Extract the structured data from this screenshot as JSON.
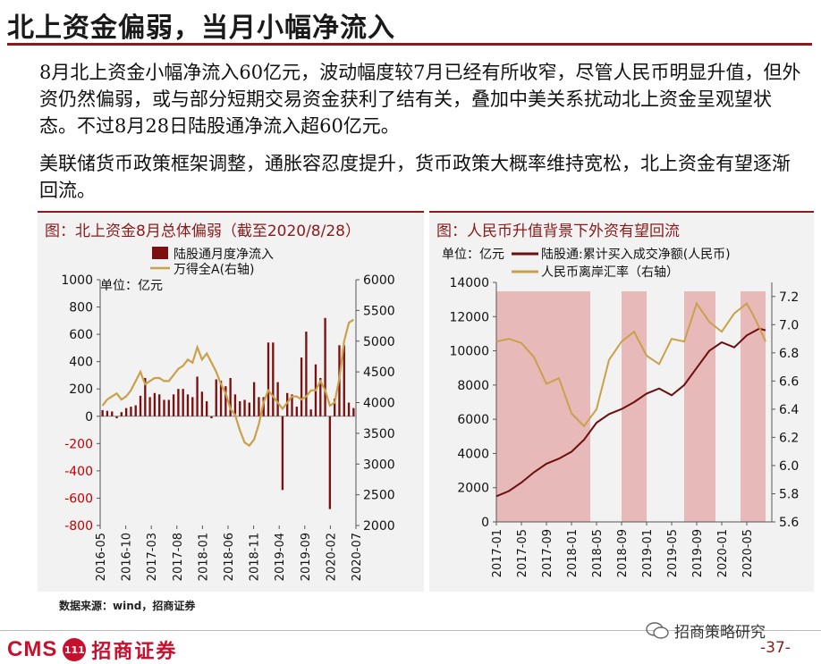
{
  "header": {
    "title": "北上资金偏弱，当月小幅净流入"
  },
  "body": {
    "para1": "8月北上资金小幅净流入60亿元，波动幅度较7月已经有所收窄，尽管人民币明显升值，但外资仍然偏弱，或与部分短期交易资金获利了结有关，叠加中美关系扰动北上资金呈观望状态。不过8月28日陆股通净流入超60亿元。",
    "para2": "美联储货币政策框架调整，通胀容忍度提升，货币政策大概率维持宽松，北上资金有望逐渐回流。"
  },
  "left_panel": {
    "title": "图：北上资金8月总体偏弱（截至2020/8/28）"
  },
  "right_panel": {
    "title": "图：人民币升值背景下外资有望回流"
  },
  "footer": {
    "source": "数据来源：wind，招商证券",
    "logo_en": "CMS",
    "logo_badge": "111",
    "logo_cn": "招商证券",
    "wechat": "招商策略研究",
    "page": "-37-"
  },
  "chart_data": [
    {
      "type": "bar",
      "unit_label": "单位：亿元",
      "x_tick_labels": [
        "2016-05",
        "2016-10",
        "2017-03",
        "2017-08",
        "2018-01",
        "2018-06",
        "2018-11",
        "2019-04",
        "2019-09",
        "2020-02",
        "2020-07"
      ],
      "ylim": [
        -800,
        1000
      ],
      "y2lim": [
        2000,
        6000
      ],
      "y_ticks": [
        -800,
        -600,
        -400,
        -200,
        0,
        200,
        400,
        600,
        800,
        1000
      ],
      "y2_ticks": [
        2000,
        2500,
        3000,
        3500,
        4000,
        4500,
        5000,
        5500,
        6000
      ],
      "series": [
        {
          "name": "陆股通月度净流入",
          "axis": "left",
          "color": "#7a1010",
          "values": [
            45,
            40,
            35,
            -15,
            30,
            60,
            70,
            80,
            150,
            280,
            140,
            170,
            160,
            120,
            120,
            160,
            200,
            200,
            160,
            140,
            290,
            180,
            110,
            -15,
            270,
            260,
            220,
            280,
            160,
            110,
            120,
            100,
            250,
            140,
            140,
            540,
            540,
            250,
            -540,
            170,
            160,
            70,
            430,
            620,
            50,
            380,
            280,
            720,
            -680,
            130,
            520,
            520,
            100,
            60
          ]
        },
        {
          "name": "万得全A(右轴)",
          "axis": "right",
          "color": "#c9a14a",
          "values": [
            3950,
            4050,
            4100,
            4150,
            4050,
            4100,
            4200,
            4350,
            4500,
            4300,
            4350,
            4400,
            4400,
            4350,
            4350,
            4450,
            4550,
            4600,
            4700,
            4650,
            4900,
            4700,
            4800,
            4650,
            4500,
            4300,
            4150,
            3900,
            3800,
            3550,
            3350,
            3300,
            3400,
            3650,
            4000,
            4200,
            4100,
            4000,
            3900,
            4000,
            4100,
            4100,
            4050,
            4100,
            4200,
            4200,
            4350,
            4200,
            3950,
            4000,
            4400,
            5000,
            5300,
            5350
          ]
        }
      ]
    },
    {
      "type": "line",
      "unit_label": "单位：亿元",
      "x_tick_labels": [
        "2017-01",
        "2017-05",
        "2017-09",
        "2018-01",
        "2018-05",
        "2018-09",
        "2019-01",
        "2019-05",
        "2019-09",
        "2020-01",
        "2020-05"
      ],
      "ylim": [
        0,
        14000
      ],
      "y2lim": [
        5.6,
        7.3
      ],
      "y_ticks": [
        0,
        2000,
        4000,
        6000,
        8000,
        10000,
        12000,
        14000
      ],
      "y2_ticks": [
        5.6,
        5.8,
        6.0,
        6.2,
        6.4,
        6.6,
        6.8,
        7.0,
        7.2
      ],
      "shaded_ranges": [
        [
          "2017-01",
          "2018-04"
        ],
        [
          "2018-09",
          "2019-01"
        ],
        [
          "2019-07",
          "2019-12"
        ],
        [
          "2020-04",
          "2020-08"
        ]
      ],
      "series": [
        {
          "name": "陆股通:累计买入成交净额(人民币)",
          "axis": "left",
          "color": "#6b0f0f",
          "x": [
            "2017-01",
            "2017-03",
            "2017-05",
            "2017-07",
            "2017-09",
            "2017-11",
            "2018-01",
            "2018-03",
            "2018-05",
            "2018-07",
            "2018-09",
            "2018-11",
            "2019-01",
            "2019-03",
            "2019-05",
            "2019-07",
            "2019-09",
            "2019-11",
            "2020-01",
            "2020-03",
            "2020-05",
            "2020-06",
            "2020-07",
            "2020-08"
          ],
          "values": [
            1500,
            1800,
            2300,
            2900,
            3400,
            3700,
            4100,
            4800,
            5800,
            6300,
            6600,
            7000,
            7500,
            7800,
            7400,
            8000,
            9000,
            10000,
            10500,
            10200,
            10900,
            11100,
            11300,
            11200
          ]
        },
        {
          "name": "人民币离岸汇率（右轴）",
          "axis": "right",
          "color": "#c9a14a",
          "x": [
            "2017-01",
            "2017-03",
            "2017-05",
            "2017-07",
            "2017-09",
            "2017-11",
            "2018-01",
            "2018-03",
            "2018-05",
            "2018-07",
            "2018-09",
            "2018-11",
            "2019-01",
            "2019-03",
            "2019-05",
            "2019-07",
            "2019-09",
            "2019-11",
            "2020-01",
            "2020-03",
            "2020-05",
            "2020-06",
            "2020-07",
            "2020-08"
          ],
          "values": [
            6.88,
            6.9,
            6.87,
            6.77,
            6.58,
            6.62,
            6.37,
            6.28,
            6.4,
            6.75,
            6.88,
            6.95,
            6.78,
            6.72,
            6.9,
            6.88,
            7.15,
            7.02,
            6.95,
            7.08,
            7.15,
            7.07,
            6.98,
            6.88
          ]
        }
      ]
    }
  ]
}
